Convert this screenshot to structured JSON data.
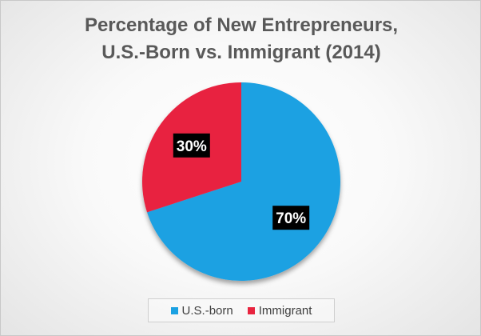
{
  "chart_data": {
    "type": "pie",
    "title_lines": [
      "Percentage of New Entrepreneurs,",
      "U.S.-Born vs. Immigrant (2014)"
    ],
    "slices": [
      {
        "label": "U.S.-born",
        "value": 70,
        "data_label": "70%",
        "color": "#1ba1e2"
      },
      {
        "label": "Immigrant",
        "value": 30,
        "data_label": "30%",
        "color": "#e8243f"
      }
    ],
    "legend_position": "bottom",
    "start_angle_deg": 0,
    "direction": "clockwise"
  }
}
